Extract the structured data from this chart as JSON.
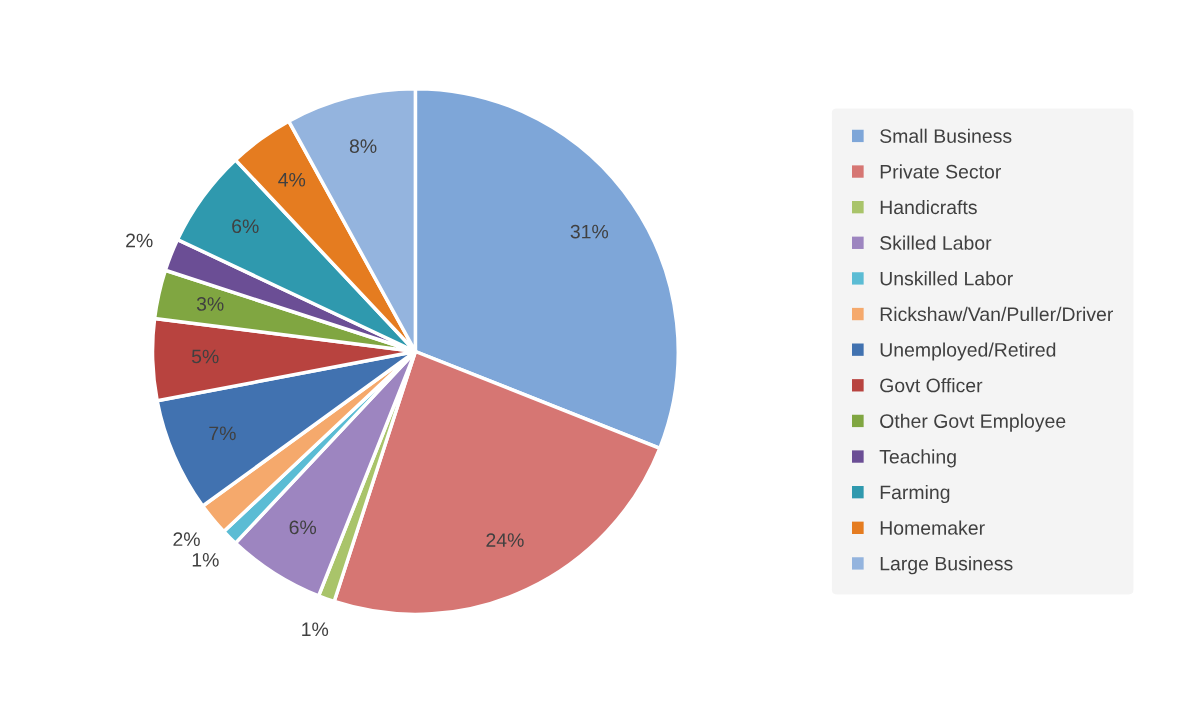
{
  "chart_data": {
    "type": "pie",
    "categories": [
      "Small Business",
      "Private Sector",
      "Handicrafts",
      "Skilled Labor",
      "Unskilled Labor",
      "Rickshaw/Van/Puller/Driver",
      "Unemployed/Retired",
      "Govt Officer",
      "Other Govt Employee",
      "Teaching",
      "Farming",
      "Homemaker",
      "Large Business"
    ],
    "values": [
      31,
      24,
      1,
      6,
      1,
      2,
      7,
      5,
      3,
      2,
      6,
      4,
      8
    ],
    "colors": [
      "#7ea6d8",
      "#d67673",
      "#a9c46a",
      "#9d85c0",
      "#5bbcd4",
      "#f5a96c",
      "#4172b0",
      "#b8433f",
      "#80a641",
      "#6b4e95",
      "#2f99ae",
      "#e57c20",
      "#94b4de"
    ],
    "value_labels": [
      "31%",
      "24%",
      "1%",
      "6%",
      "1%",
      "2%",
      "7%",
      "5%",
      "3%",
      "2%",
      "6%",
      "4%",
      "8%"
    ],
    "legend": "right"
  }
}
